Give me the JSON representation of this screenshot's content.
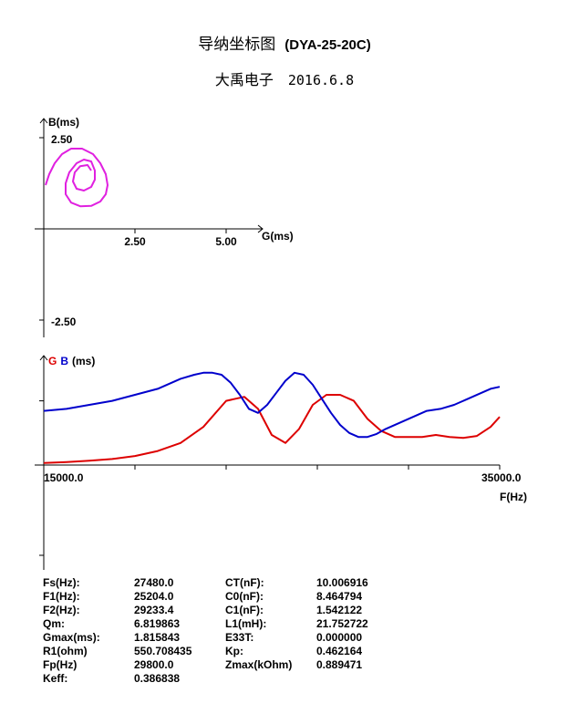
{
  "header": {
    "title": "导纳坐标图",
    "model": "(DYA-25-20C)",
    "company": "大禹电子",
    "date": "2016.6.8"
  },
  "chart_data": [
    {
      "type": "scatter",
      "name": "admittance-circle",
      "xlabel": "G(ms)",
      "ylabel": "B(ms)",
      "x_ticks": [
        "2.50",
        "5.00"
      ],
      "y_ticks": [
        "2.50",
        "-2.50"
      ],
      "xlim": [
        0,
        5.5
      ],
      "ylim": [
        -2.5,
        2.5
      ],
      "colors": {
        "curve": "#e020e0"
      },
      "points": [
        [
          0.05,
          1.2
        ],
        [
          0.15,
          1.5
        ],
        [
          0.3,
          1.8
        ],
        [
          0.5,
          2.05
        ],
        [
          0.75,
          2.2
        ],
        [
          1.05,
          2.2
        ],
        [
          1.35,
          2.05
        ],
        [
          1.55,
          1.8
        ],
        [
          1.7,
          1.5
        ],
        [
          1.75,
          1.2
        ],
        [
          1.7,
          0.95
        ],
        [
          1.55,
          0.75
        ],
        [
          1.3,
          0.63
        ],
        [
          1.0,
          0.62
        ],
        [
          0.75,
          0.72
        ],
        [
          0.6,
          0.95
        ],
        [
          0.6,
          1.25
        ],
        [
          0.7,
          1.55
        ],
        [
          0.9,
          1.8
        ],
        [
          1.1,
          1.9
        ],
        [
          1.3,
          1.85
        ],
        [
          1.4,
          1.6
        ],
        [
          1.4,
          1.35
        ],
        [
          1.3,
          1.15
        ],
        [
          1.1,
          1.05
        ],
        [
          0.9,
          1.1
        ],
        [
          0.8,
          1.3
        ],
        [
          0.85,
          1.55
        ],
        [
          1.0,
          1.72
        ],
        [
          1.2,
          1.75
        ],
        [
          1.3,
          1.6
        ]
      ]
    },
    {
      "type": "line",
      "name": "frequency-sweep",
      "title_parts": [
        {
          "text": "G",
          "color": "#dd0000"
        },
        {
          "text": "B",
          "color": "#0000cc"
        },
        {
          "text": "(ms)",
          "color": "#000000"
        }
      ],
      "xlabel": "F(Hz)",
      "x_ticks": [
        "15000.0",
        "35000.0"
      ],
      "xlim": [
        15000,
        35000
      ],
      "ylim": [
        -5,
        5
      ],
      "series": [
        {
          "name": "G",
          "color": "#dd0000",
          "x": [
            15000,
            16000,
            17000,
            18000,
            19000,
            20000,
            21000,
            22000,
            23000,
            23800,
            24400,
            25000,
            25600,
            26200,
            26800,
            27400,
            28000,
            28600,
            29200,
            29800,
            30400,
            31000,
            31600,
            32200,
            32800,
            33400,
            34000,
            34600,
            35000
          ],
          "y": [
            0.1,
            0.15,
            0.22,
            0.3,
            0.45,
            0.7,
            1.1,
            1.9,
            3.2,
            3.4,
            2.8,
            1.5,
            1.1,
            1.8,
            3.0,
            3.5,
            3.5,
            3.2,
            2.3,
            1.7,
            1.4,
            1.4,
            1.4,
            1.5,
            1.4,
            1.35,
            1.45,
            1.9,
            2.4
          ]
        },
        {
          "name": "B",
          "color": "#0000cc",
          "x": [
            15000,
            16000,
            17000,
            18000,
            19000,
            20000,
            21000,
            21600,
            22000,
            22400,
            22800,
            23200,
            23600,
            24000,
            24400,
            24800,
            25200,
            25600,
            26000,
            26400,
            26800,
            27200,
            27600,
            28000,
            28400,
            28800,
            29200,
            29600,
            30000,
            30600,
            31200,
            31800,
            32400,
            33000,
            33600,
            34200,
            34600,
            35000
          ],
          "y": [
            2.7,
            2.8,
            3.0,
            3.2,
            3.5,
            3.8,
            4.3,
            4.5,
            4.6,
            4.6,
            4.5,
            4.1,
            3.5,
            2.8,
            2.6,
            3.0,
            3.6,
            4.2,
            4.6,
            4.5,
            4.0,
            3.3,
            2.6,
            2.0,
            1.6,
            1.4,
            1.4,
            1.55,
            1.8,
            2.1,
            2.4,
            2.7,
            2.8,
            3.0,
            3.3,
            3.6,
            3.8,
            3.9
          ]
        }
      ]
    }
  ],
  "params": [
    {
      "label": "Fs(Hz):",
      "value": "27480.0",
      "label2": "CT(nF):",
      "value2": "10.006916"
    },
    {
      "label": "F1(Hz):",
      "value": "25204.0",
      "label2": "C0(nF):",
      "value2": "8.464794"
    },
    {
      "label": "F2(Hz):",
      "value": "29233.4",
      "label2": "C1(nF):",
      "value2": "1.542122"
    },
    {
      "label": "Qm:",
      "value": "6.819863",
      "label2": "L1(mH):",
      "value2": "21.752722"
    },
    {
      "label": "Gmax(ms):",
      "value": "1.815843",
      "label2": "E33T:",
      "value2": "0.000000"
    },
    {
      "label": "R1(ohm)",
      "value": "550.708435",
      "label2": "Kp:",
      "value2": "0.462164"
    },
    {
      "label": "Fp(Hz)",
      "value": "29800.0",
      "label2": "Zmax(kOhm)",
      "value2": "0.889471"
    },
    {
      "label": "Keff:",
      "value": "0.386838",
      "label2": "",
      "value2": ""
    }
  ]
}
